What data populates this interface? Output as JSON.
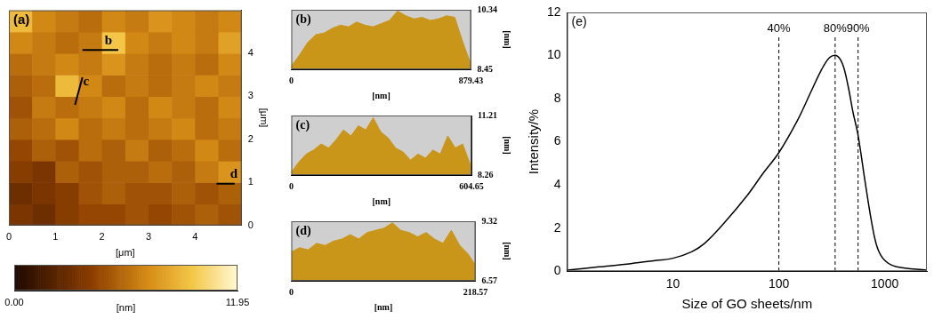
{
  "chart_data": [
    {
      "type": "heatmap",
      "title": "(a)",
      "x_label": "[μm]",
      "y_label": "[μm]",
      "xlim": [
        0,
        5
      ],
      "ylim": [
        0,
        5
      ],
      "xticks": [
        0,
        1,
        2,
        3,
        4
      ],
      "yticks": [
        0,
        1,
        2,
        3,
        4
      ],
      "grid": false,
      "x_edges": [
        0,
        0.5,
        1,
        1.5,
        2,
        2.5,
        3,
        3.5,
        4,
        4.5,
        5
      ],
      "y_edges": [
        0,
        0.5,
        1,
        1.5,
        2,
        2.5,
        3,
        3.5,
        4,
        4.5,
        5
      ],
      "cells": [
        [
          3.5,
          3.0,
          4.0,
          4.5,
          4.5,
          5.0,
          4.5,
          5.0,
          5.5,
          5.0
        ],
        [
          3.0,
          3.5,
          4.0,
          5.0,
          5.5,
          5.0,
          5.0,
          5.5,
          5.0,
          5.5
        ],
        [
          4.0,
          3.5,
          5.5,
          5.0,
          5.5,
          5.5,
          6.0,
          5.5,
          6.5,
          7.5
        ],
        [
          4.5,
          5.5,
          5.0,
          6.0,
          5.5,
          6.5,
          5.5,
          6.0,
          7.0,
          6.0
        ],
        [
          5.5,
          6.0,
          7.0,
          6.0,
          6.5,
          6.0,
          6.5,
          7.0,
          6.0,
          6.5
        ],
        [
          5.0,
          6.5,
          6.0,
          6.5,
          7.0,
          6.0,
          7.0,
          6.5,
          6.0,
          7.0
        ],
        [
          5.5,
          6.0,
          9.0,
          7.0,
          6.0,
          6.5,
          6.0,
          6.5,
          7.0,
          6.5
        ],
        [
          6.0,
          6.5,
          7.0,
          6.5,
          7.5,
          6.5,
          6.0,
          6.5,
          6.0,
          7.0
        ],
        [
          7.0,
          6.5,
          6.0,
          6.5,
          9.5,
          7.0,
          6.5,
          7.0,
          6.5,
          8.0
        ],
        [
          9.0,
          7.0,
          6.5,
          6.0,
          7.0,
          6.5,
          7.5,
          7.0,
          6.5,
          7.0
        ]
      ],
      "colorbar": {
        "range": [
          0,
          11.95
        ],
        "ticks": [
          {
            "value": 0,
            "label": "0.00"
          },
          11.95
        ],
        "label": "[nm]"
      },
      "annotations": [
        {
          "label": "b",
          "x": [
            1.58,
            2.35
          ],
          "y": [
            4.08,
            4.08
          ]
        },
        {
          "label": "c",
          "x": [
            1.58,
            1.42
          ],
          "y": [
            3.44,
            2.8
          ]
        },
        {
          "label": "d",
          "x": [
            4.46,
            4.85
          ],
          "y": [
            0.97,
            0.97
          ]
        }
      ]
    },
    {
      "type": "area",
      "title": "(b)",
      "x_label": "[nm]",
      "y_label": "[nm]",
      "color": "#c9961a",
      "grid": false,
      "x": [
        0,
        40,
        80,
        120,
        160,
        200,
        240,
        280,
        320,
        360,
        400,
        440,
        480,
        520,
        560,
        600,
        640,
        680,
        720,
        760,
        800,
        840,
        879.43
      ],
      "values": [
        8.55,
        8.9,
        9.3,
        9.55,
        9.6,
        9.75,
        9.85,
        9.8,
        9.95,
        9.85,
        9.8,
        9.9,
        10.0,
        10.3,
        10.15,
        10.05,
        10.1,
        10.0,
        10.05,
        10.15,
        10.1,
        9.3,
        8.6
      ],
      "xlim": [
        0,
        879.43
      ],
      "xticks": [
        0,
        879.43
      ],
      "ylim": [
        8.45,
        10.34
      ],
      "yticks": [
        8.45,
        10.34
      ]
    },
    {
      "type": "area",
      "title": "(c)",
      "x_label": "[nm]",
      "y_label": "[nm]",
      "color": "#c9961a",
      "grid": false,
      "x": [
        0,
        25,
        50,
        75,
        100,
        125,
        150,
        175,
        200,
        225,
        250,
        275,
        300,
        325,
        350,
        375,
        400,
        425,
        450,
        475,
        500,
        525,
        550,
        575,
        600,
        604.65
      ],
      "values": [
        8.4,
        8.9,
        9.3,
        9.5,
        9.8,
        9.6,
        10.0,
        10.5,
        10.2,
        10.7,
        10.5,
        11.1,
        10.4,
        10.1,
        9.6,
        9.4,
        9.0,
        9.3,
        9.1,
        9.5,
        9.3,
        10.2,
        9.6,
        9.8,
        8.8,
        8.5
      ],
      "xlim": [
        0,
        604.65
      ],
      "xticks": [
        0,
        604.65
      ],
      "ylim": [
        8.26,
        11.21
      ],
      "yticks": [
        8.26,
        11.21
      ]
    },
    {
      "type": "area",
      "title": "(d)",
      "x_label": "[nm]",
      "y_label": "[nm]",
      "color": "#c9961a",
      "grid": false,
      "x": [
        0,
        10,
        20,
        30,
        40,
        50,
        60,
        70,
        80,
        90,
        100,
        110,
        120,
        130,
        140,
        150,
        160,
        170,
        180,
        190,
        200,
        210,
        218.57
      ],
      "values": [
        7.9,
        8.1,
        8.0,
        8.3,
        8.2,
        8.4,
        8.5,
        8.7,
        8.5,
        8.8,
        8.9,
        9.0,
        9.25,
        8.9,
        8.8,
        8.6,
        8.8,
        8.5,
        8.3,
        8.9,
        8.2,
        7.8,
        7.3
      ],
      "xlim": [
        0,
        218.57
      ],
      "xticks": [
        0,
        218.57
      ],
      "ylim": [
        6.57,
        9.32
      ],
      "yticks": [
        6.57,
        9.32
      ]
    },
    {
      "type": "line",
      "title": "(e)",
      "x_label": "Size of GO sheets/nm",
      "y_label": "Intensity/%",
      "color": "#000000",
      "grid": false,
      "log": "x",
      "x": [
        1,
        2,
        4,
        7,
        10,
        15,
        20,
        30,
        50,
        70,
        100,
        150,
        200,
        250,
        300,
        350,
        400,
        450,
        500,
        560,
        650,
        750,
        850,
        1000,
        1300,
        2500
      ],
      "values": [
        0.05,
        0.2,
        0.35,
        0.5,
        0.6,
        0.9,
        1.3,
        2.2,
        3.5,
        4.5,
        5.5,
        7.0,
        8.3,
        9.3,
        9.9,
        10.0,
        9.6,
        8.6,
        7.4,
        6.3,
        4.2,
        2.3,
        1.1,
        0.5,
        0.2,
        0.05
      ],
      "xlim": [
        1,
        2500
      ],
      "xticks": [
        10,
        100,
        1000
      ],
      "ylim": [
        0,
        12
      ],
      "yticks": [
        0,
        2,
        4,
        6,
        8,
        10,
        12
      ],
      "annotations": [
        {
          "x": 100,
          "label": "40%",
          "line_style": "dashed"
        },
        {
          "x": 340,
          "label": "80%",
          "line_style": "dashed"
        },
        {
          "x": 560,
          "label": "90%",
          "line_style": "dashed"
        }
      ]
    }
  ]
}
